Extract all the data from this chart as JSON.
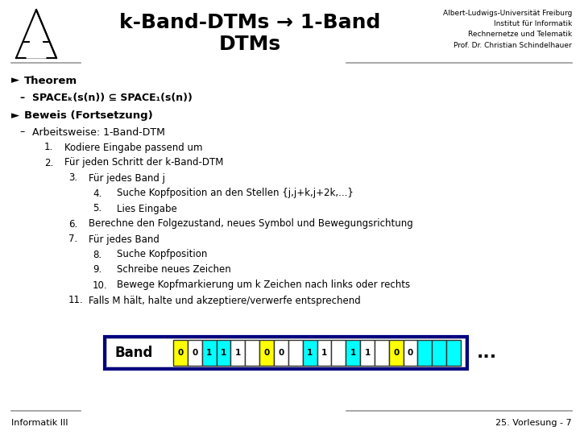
{
  "title_line1": "k-Band-DTMs → 1-Band",
  "title_line2": "DTMs",
  "title_right_lines": [
    "Albert-Ludwigs-Universität Freiburg",
    "Institut für Informatik",
    "Rechnernetze und Telematik",
    "Prof. Dr. Christian Schindelhauer"
  ],
  "footer_left": "Informatik III",
  "footer_right": "25. Vorlesung - 7",
  "bullet1_bold": "Theorem",
  "bullet1_sub": "SPACEₖ(s(n)) ⊆ SPACE₁(s(n))",
  "bullet2_bold": "Beweis (Fortsetzung)",
  "bullet2_sub": "Arbeitsweise: 1-Band-DTM",
  "numbered_items": [
    {
      "num": "1.",
      "indent": 1,
      "text": "Kodiere Eingabe passend um"
    },
    {
      "num": "2.",
      "indent": 1,
      "text": "Für jeden Schritt der k-Band-DTM"
    },
    {
      "num": "3.",
      "indent": 2,
      "text": "Für jedes Band j"
    },
    {
      "num": "4.",
      "indent": 3,
      "text": "Suche Kopfposition an den Stellen {j,j+k,j+2k,...}"
    },
    {
      "num": "5.",
      "indent": 3,
      "text": "Lies Eingabe"
    },
    {
      "num": "6.",
      "indent": 2,
      "text": "Berechne den Folgezustand, neues Symbol und Bewegungsrichtung"
    },
    {
      "num": "7.",
      "indent": 2,
      "text": "Für jedes Band"
    },
    {
      "num": "8.",
      "indent": 3,
      "text": "Suche Kopfposition"
    },
    {
      "num": "9.",
      "indent": 3,
      "text": "Schreibe neues Zeichen"
    },
    {
      "num": "10.",
      "indent": 3,
      "text": "Bewege Kopfmarkierung um k Zeichen nach links oder rechts"
    },
    {
      "num": "11.",
      "indent": 2,
      "text": "Falls M hält, halte und akzeptiere/verwerfe entsprechend"
    }
  ],
  "band_label": "Band",
  "band_cells": [
    "0",
    "0",
    "1",
    "1",
    "1",
    "_",
    "0",
    "0",
    "_",
    "1",
    "1",
    "_",
    "1",
    "1",
    "_",
    "0",
    "0",
    "_",
    "_",
    "_"
  ],
  "band_colors": [
    "#FFFF00",
    "#FFFFFF",
    "#00FFFF",
    "#00FFFF",
    "#FFFFFF",
    "#FFFFFF",
    "#FFFF00",
    "#FFFFFF",
    "#FFFFFF",
    "#00FFFF",
    "#FFFFFF",
    "#FFFFFF",
    "#00FFFF",
    "#FFFFFF",
    "#FFFFFF",
    "#FFFF00",
    "#FFFFFF",
    "#00FFFF",
    "#00FFFF",
    "#00FFFF"
  ],
  "bg_color": "#FFFFFF",
  "text_color": "#000000",
  "border_color": "#000080"
}
